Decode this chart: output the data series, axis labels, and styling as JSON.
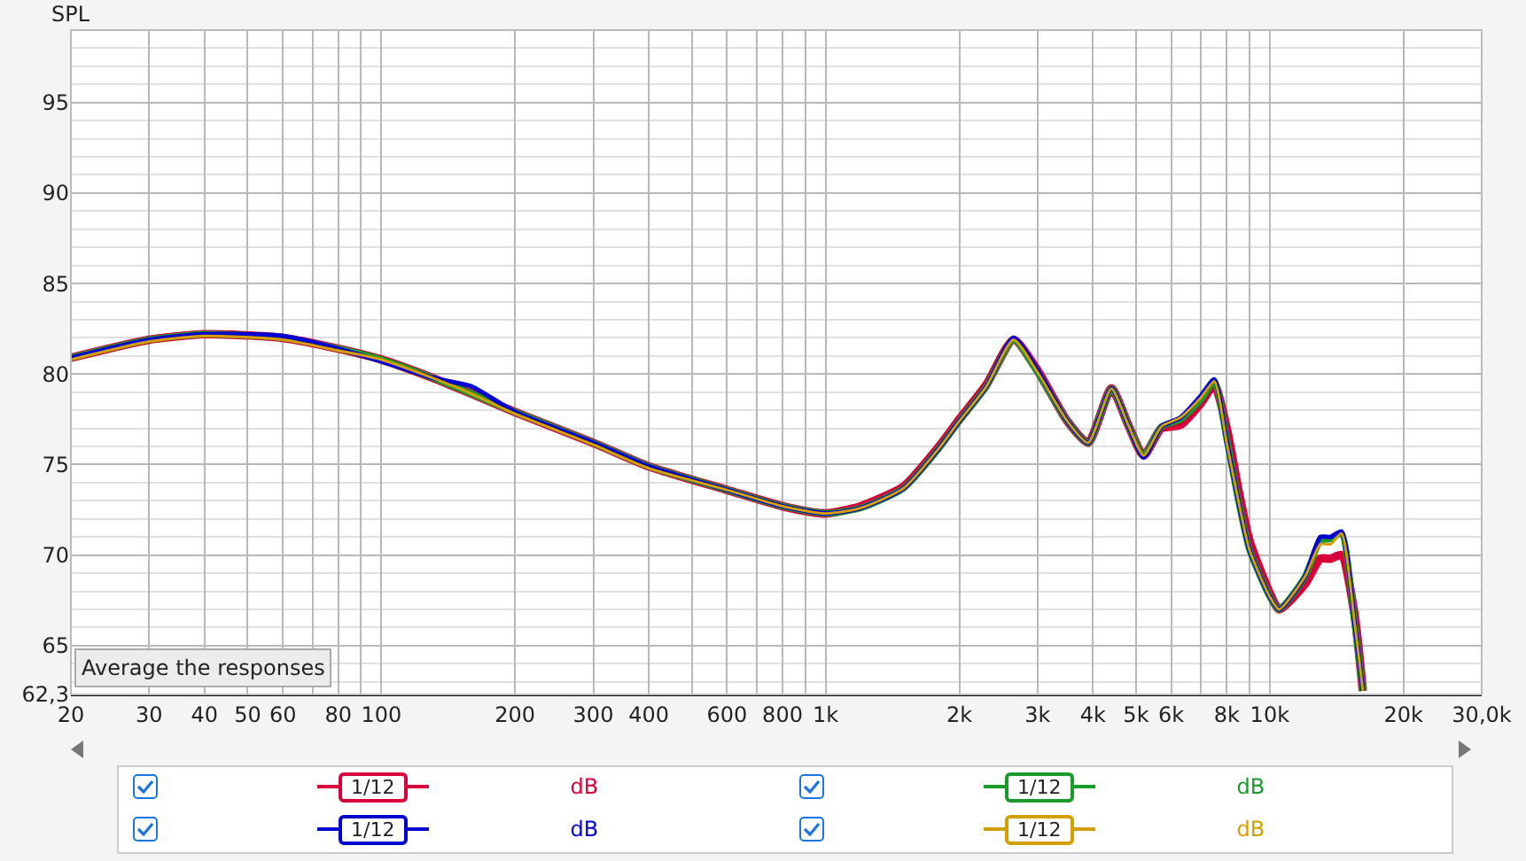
{
  "chart_data": {
    "type": "line",
    "ylabel": "SPL",
    "x": [
      20,
      30,
      40,
      60,
      80,
      100,
      130,
      160,
      200,
      300,
      400,
      600,
      800,
      1000,
      1200,
      1500,
      1800,
      2000,
      2300,
      2650,
      3000,
      3500,
      3900,
      4400,
      4800,
      5200,
      5700,
      6300,
      7000,
      7500,
      8000,
      8500,
      9000,
      10000,
      10500,
      12000,
      13000,
      13700,
      14500,
      15500,
      16200
    ],
    "series": [
      {
        "color": "#d8003a",
        "values": [
          80.9,
          81.9,
          82.2,
          82.0,
          81.4,
          80.8,
          79.8,
          78.9,
          77.9,
          76.2,
          74.9,
          73.6,
          72.7,
          72.3,
          72.7,
          73.8,
          76.0,
          77.5,
          79.4,
          81.9,
          80.2,
          77.4,
          76.2,
          79.2,
          77.2,
          75.5,
          77.0,
          77.2,
          78.4,
          79.4,
          77.0,
          73.6,
          70.8,
          67.9,
          67.0,
          68.4,
          69.8,
          69.8,
          70.0,
          66.8,
          62.5
        ]
      },
      {
        "color": "#1a9a2a",
        "values": [
          80.9,
          81.9,
          82.2,
          82.0,
          81.4,
          80.8,
          79.8,
          78.9,
          77.9,
          76.2,
          74.9,
          73.6,
          72.7,
          72.3,
          72.6,
          73.7,
          75.9,
          77.4,
          79.3,
          81.9,
          80.1,
          77.4,
          76.2,
          79.2,
          77.2,
          75.5,
          77.1,
          77.5,
          78.6,
          79.6,
          76.4,
          73.0,
          70.3,
          67.7,
          67.0,
          68.8,
          70.8,
          70.9,
          71.2,
          66.4,
          62.5
        ]
      },
      {
        "color": "#0000d0",
        "values": [
          80.9,
          81.9,
          82.2,
          82.1,
          81.4,
          80.7,
          79.8,
          79.3,
          77.9,
          76.2,
          74.9,
          73.6,
          72.7,
          72.3,
          72.6,
          73.7,
          75.9,
          77.4,
          79.3,
          82.0,
          80.2,
          77.4,
          76.2,
          79.2,
          77.2,
          75.4,
          77.1,
          77.6,
          78.8,
          79.7,
          76.3,
          73.0,
          70.3,
          67.7,
          67.0,
          68.8,
          71.0,
          71.0,
          71.3,
          66.4,
          62.5
        ]
      },
      {
        "color": "#d4a000",
        "values": [
          80.8,
          81.8,
          82.1,
          81.9,
          81.3,
          80.8,
          79.8,
          78.9,
          77.8,
          76.1,
          74.8,
          73.6,
          72.7,
          72.3,
          72.6,
          73.7,
          75.9,
          77.4,
          79.3,
          81.9,
          80.1,
          77.4,
          76.2,
          79.2,
          77.2,
          75.5,
          77.1,
          77.6,
          78.7,
          79.6,
          76.2,
          73.0,
          70.3,
          67.7,
          67.0,
          68.8,
          70.6,
          70.6,
          71.2,
          66.4,
          62.5
        ]
      }
    ],
    "log": "x",
    "xlim": [
      20,
      30000
    ],
    "ylim": [
      62.3,
      99
    ],
    "xticks": [
      20,
      30,
      40,
      50,
      60,
      {
        "value": 70,
        "label": null
      },
      80,
      {
        "value": 90,
        "label": null
      },
      100,
      200,
      300,
      400,
      {
        "value": 500,
        "label": null
      },
      600,
      {
        "value": 700,
        "label": null
      },
      800,
      {
        "value": 900,
        "label": null
      },
      {
        "value": 1000,
        "label": "1k"
      },
      {
        "value": 2000,
        "label": "2k"
      },
      {
        "value": 3000,
        "label": "3k"
      },
      {
        "value": 4000,
        "label": "4k"
      },
      {
        "value": 5000,
        "label": "5k"
      },
      {
        "value": 6000,
        "label": "6k"
      },
      {
        "value": 7000,
        "label": null
      },
      {
        "value": 8000,
        "label": "8k"
      },
      {
        "value": 9000,
        "label": null
      },
      {
        "value": 10000,
        "label": "10k"
      },
      {
        "value": 20000,
        "label": "20k"
      },
      {
        "value": 30000,
        "label": "30,0k"
      }
    ],
    "yticks": [
      {
        "value": 62.3,
        "label": "62,3"
      },
      65,
      70,
      75,
      80,
      85,
      90,
      95
    ],
    "grid": true,
    "marker": "none",
    "line_style": "solid",
    "annotations": [
      "Average the responses",
      "1/12",
      "dB",
      "1/12",
      "dB",
      "1/12",
      "dB",
      "1/12",
      "dB"
    ]
  }
}
